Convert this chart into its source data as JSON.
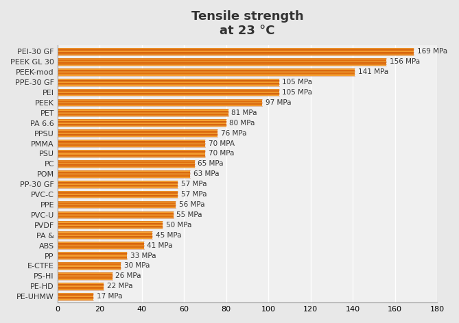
{
  "title": "Tensile strength\nat 23 °C",
  "categories": [
    "PE-UHMW",
    "PE-HD",
    "PS-HI",
    "E-CTFE",
    "PP",
    "ABS",
    "PA &",
    "PVDF",
    "PVC-U",
    "PPE",
    "PVC-C",
    "PP-30 GF",
    "POM",
    "PC",
    "PSU",
    "PMMA",
    "PPSU",
    "PA 6.6",
    "PET",
    "PEEK",
    "PEI",
    "PPE-30 GF",
    "PEEK-mod",
    "PEEK GL 30",
    "PEI-30 GF"
  ],
  "values": [
    17,
    22,
    26,
    30,
    33,
    41,
    45,
    50,
    55,
    56,
    57,
    57,
    63,
    65,
    70,
    70,
    76,
    80,
    81,
    97,
    105,
    105,
    141,
    156,
    169
  ],
  "labels": [
    "17 MPa",
    "22 MPa",
    "26 MPa",
    "30 MPa",
    "33 MPa",
    "41 MPa",
    "45 MPa",
    "50 MPa",
    "55 MPa",
    "56 MPa",
    "57 MPa",
    "57 MPa",
    "63 MPa",
    "65 MPa",
    "70 MPa",
    "70 MPA",
    "76 MPa",
    "80 MPa",
    "81 MPa",
    "97 MPa",
    "105 MPa",
    "105 MPa",
    "141 MPa",
    "156 MPa",
    "169 MPa"
  ],
  "stripe_colors": [
    "#F5A030",
    "#E07010"
  ],
  "line_color": "#C05010",
  "background_color": "#E8E8E8",
  "plot_bg_color": "#F0F0F0",
  "grid_color": "#FFFFFF",
  "text_color": "#333333",
  "xlim": [
    0,
    180
  ],
  "xticks": [
    0,
    20,
    40,
    60,
    80,
    100,
    120,
    140,
    160,
    180
  ],
  "title_fontsize": 13,
  "label_fontsize": 7.5,
  "tick_fontsize": 8,
  "category_fontsize": 8,
  "stripe_count": 5
}
